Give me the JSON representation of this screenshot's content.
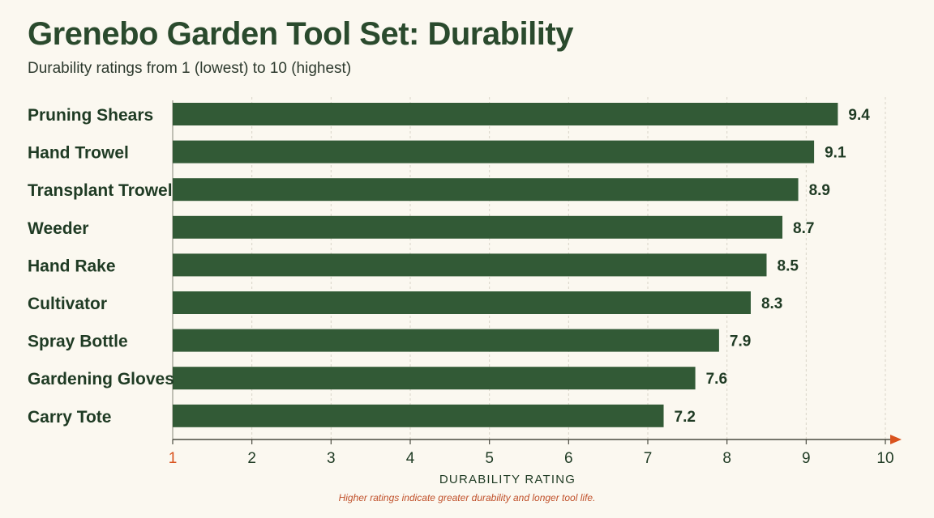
{
  "title": "Grenebo Garden Tool Set: Durability",
  "subtitle": "Durability ratings from 1 (lowest) to 10 (highest)",
  "footnote": "Higher ratings indicate greater durability and longer tool life.",
  "colors": {
    "bar": "#325a36",
    "text": "#1f3b24",
    "accent": "#d9531e",
    "grid": "#d8d4c8",
    "background": "#fbf8f0"
  },
  "chart_data": {
    "type": "bar",
    "orientation": "horizontal",
    "categories": [
      "Pruning Shears",
      "Hand Trowel",
      "Transplant Trowel",
      "Weeder",
      "Hand Rake",
      "Cultivator",
      "Spray Bottle",
      "Gardening Gloves",
      "Carry Tote"
    ],
    "values": [
      9.4,
      9.1,
      8.9,
      8.7,
      8.5,
      8.3,
      7.9,
      7.6,
      7.2
    ],
    "value_labels": [
      "9.4",
      "9.1",
      "8.9",
      "8.7",
      "8.5",
      "8.3",
      "7.9",
      "7.6",
      "7.2"
    ],
    "xlabel": "DURABILITY RATING",
    "xlim": [
      1,
      10
    ],
    "xticks": [
      1,
      2,
      3,
      4,
      5,
      6,
      7,
      8,
      9,
      10
    ],
    "grid": "vertical dashed",
    "legend": "none"
  }
}
